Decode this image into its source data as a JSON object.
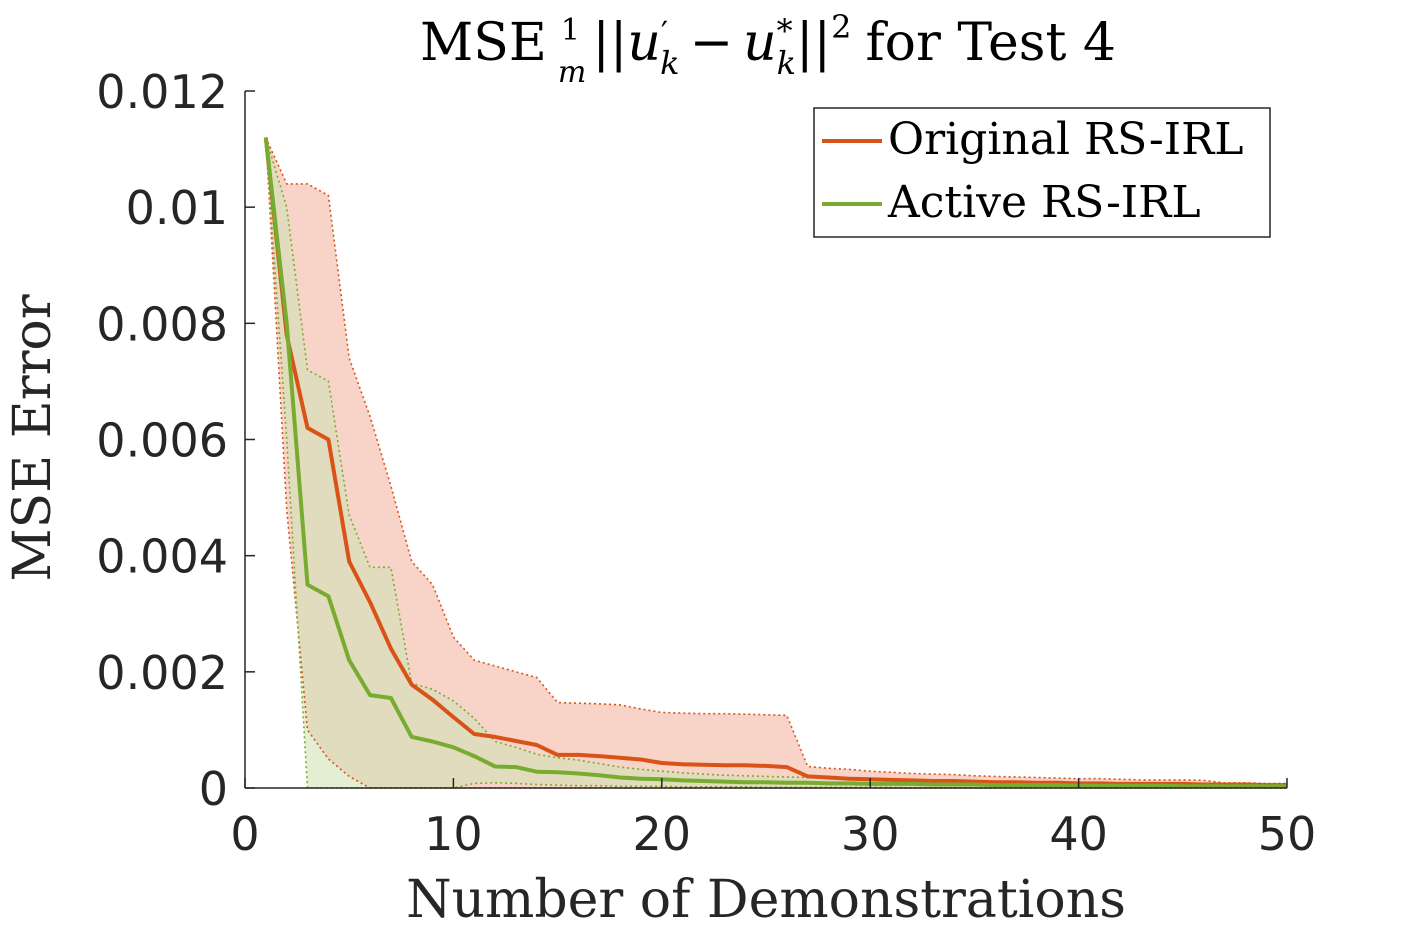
{
  "chart_data": {
    "type": "line",
    "title_parts": {
      "prefix": "MSE",
      "frac_num": "1",
      "frac_den": "m",
      "bars_open": "||",
      "u1": "u",
      "u1_sup": "′",
      "u1_sub": "k",
      "minus": "−",
      "u2": "u",
      "u2_sup": "*",
      "u2_sub": "k",
      "bars_close": "||",
      "exp": "2",
      "suffix": "for Test 4"
    },
    "xlabel": "Number of Demonstrations",
    "ylabel": "MSE Error",
    "xlim": [
      0,
      50
    ],
    "ylim": [
      0,
      0.012
    ],
    "xticks": [
      0,
      10,
      20,
      30,
      40,
      50
    ],
    "xtick_labels": [
      "0",
      "10",
      "20",
      "30",
      "40",
      "50"
    ],
    "yticks": [
      0,
      0.002,
      0.004,
      0.006,
      0.008,
      0.01,
      0.012
    ],
    "ytick_labels": [
      "0",
      "0.002",
      "0.004",
      "0.006",
      "0.008",
      "0.01",
      "0.012"
    ],
    "grid": false,
    "legend_position": "top-right",
    "x": [
      1,
      2,
      3,
      4,
      5,
      6,
      7,
      8,
      9,
      10,
      11,
      12,
      13,
      14,
      15,
      16,
      17,
      18,
      19,
      20,
      21,
      22,
      23,
      24,
      25,
      26,
      27,
      28,
      29,
      30,
      31,
      32,
      33,
      34,
      35,
      36,
      37,
      38,
      39,
      40,
      41,
      42,
      43,
      44,
      45,
      46,
      47,
      48,
      49,
      50
    ],
    "series": [
      {
        "name": "Original RS-IRL",
        "color": "#d95319",
        "band_color": "#f5c4b5",
        "mean": [
          0.0112,
          0.0078,
          0.0062,
          0.006,
          0.0039,
          0.0032,
          0.0024,
          0.00178,
          0.00152,
          0.00122,
          0.00093,
          0.00088,
          0.00081,
          0.00074,
          0.00057,
          0.00057,
          0.00055,
          0.00052,
          0.00049,
          0.00043,
          0.00041,
          0.0004,
          0.00039,
          0.00039,
          0.00038,
          0.00036,
          0.0002,
          0.00018,
          0.00016,
          0.00015,
          0.00014,
          0.00013,
          0.00012,
          0.00012,
          0.00011,
          0.0001,
          0.0001,
          9e-05,
          9e-05,
          8e-05,
          8e-05,
          7e-05,
          7e-05,
          7e-05,
          7e-05,
          6e-05,
          6e-05,
          6e-05,
          5e-05,
          5e-05
        ],
        "upper": [
          0.0112,
          0.0104,
          0.0104,
          0.0102,
          0.0074,
          0.0064,
          0.0052,
          0.0039,
          0.0035,
          0.0026,
          0.0022,
          0.0021,
          0.002,
          0.0019,
          0.00147,
          0.00146,
          0.00145,
          0.00143,
          0.00136,
          0.0013,
          0.00129,
          0.00128,
          0.00128,
          0.00127,
          0.00126,
          0.00125,
          0.00037,
          0.00034,
          0.00032,
          0.00029,
          0.00027,
          0.00025,
          0.00024,
          0.00023,
          0.00021,
          0.0002,
          0.00019,
          0.00018,
          0.00017,
          0.00016,
          0.00016,
          0.00015,
          0.00014,
          0.00014,
          0.00014,
          0.00013,
          9e-05,
          9e-05,
          8e-05,
          8e-05
        ],
        "lower": [
          0.0112,
          0.0048,
          0.001,
          0.0005,
          0.0002,
          0.0,
          0.0,
          0.0,
          0.0,
          0.0,
          0.0,
          0.0,
          0.0,
          0.0,
          0.0,
          0.0,
          0.0,
          0.0,
          0.0,
          0.0,
          0.0,
          0.0,
          0.0,
          0.0,
          0.0,
          0.0,
          0.0,
          0.0,
          0.0,
          0.0,
          0.0,
          0.0,
          0.0,
          0.0,
          0.0,
          0.0,
          0.0,
          0.0,
          0.0,
          0.0,
          0.0,
          0.0,
          0.0,
          0.0,
          0.0,
          0.0,
          0.0,
          0.0,
          0.0,
          0.0
        ]
      },
      {
        "name": "Active RS-IRL",
        "color": "#77ac30",
        "band_color": "#d2e3b5",
        "mean": [
          0.0112,
          0.008,
          0.0035,
          0.0033,
          0.0022,
          0.0016,
          0.00155,
          0.00088,
          0.0008,
          0.0007,
          0.00055,
          0.00037,
          0.00036,
          0.00028,
          0.00027,
          0.00025,
          0.00022,
          0.00018,
          0.00016,
          0.00015,
          0.00013,
          0.00012,
          0.00011,
          0.0001,
          0.0001,
          9e-05,
          9e-05,
          8e-05,
          8e-05,
          7e-05,
          7e-05,
          7e-05,
          6e-05,
          6e-05,
          6e-05,
          5e-05,
          5e-05,
          5e-05,
          5e-05,
          4e-05,
          4e-05,
          4e-05,
          4e-05,
          4e-05,
          3e-05,
          3e-05,
          3e-05,
          3e-05,
          3e-05,
          3e-05
        ],
        "upper": [
          0.0112,
          0.01,
          0.0072,
          0.007,
          0.0047,
          0.0038,
          0.0038,
          0.0018,
          0.0017,
          0.0015,
          0.0012,
          0.0008,
          0.0007,
          0.00058,
          0.00052,
          0.00048,
          0.00042,
          0.00036,
          0.00032,
          0.00029,
          0.00026,
          0.00024,
          0.00022,
          0.00021,
          0.0002,
          0.00019,
          0.00018,
          0.00017,
          0.00016,
          0.00015,
          0.00015,
          0.00014,
          0.00013,
          0.00013,
          0.00012,
          0.00011,
          0.00011,
          0.0001,
          0.0001,
          9e-05,
          9e-05,
          9e-05,
          8e-05,
          8e-05,
          7e-05,
          7e-05,
          7e-05,
          6e-05,
          6e-05,
          6e-05
        ],
        "lower": [
          0.0112,
          0.006,
          0.0,
          0.0,
          0.0,
          0.0,
          0.0,
          0.0,
          0.0,
          0.0,
          8e-05,
          9e-05,
          8e-05,
          6e-05,
          5e-05,
          4e-05,
          4e-05,
          3e-05,
          3e-05,
          3e-05,
          2e-05,
          2e-05,
          2e-05,
          2e-05,
          1e-05,
          1e-05,
          1e-05,
          1e-05,
          1e-05,
          1e-05,
          1e-05,
          0.0,
          0.0,
          0.0,
          0.0,
          0.0,
          0.0,
          0.0,
          0.0,
          0.0,
          0.0,
          0.0,
          0.0,
          0.0,
          0.0,
          0.0,
          0.0,
          0.0,
          0.0,
          0.0
        ]
      }
    ]
  }
}
